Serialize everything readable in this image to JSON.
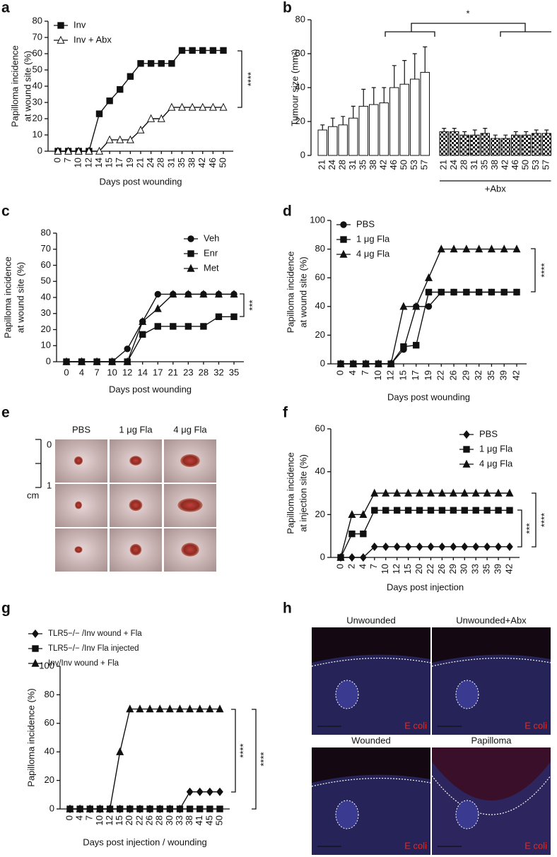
{
  "chart_data": [
    {
      "type": "line",
      "panel": "a",
      "ylabel": [
        "Papilloma incidence",
        "at wound site (%)"
      ],
      "xlabel": "Days post wounding",
      "categories": [
        "0",
        "7",
        "10",
        "12",
        "14",
        "15",
        "17",
        "19",
        "21",
        "24",
        "28",
        "31",
        "35",
        "38",
        "42",
        "46",
        "50"
      ],
      "series": [
        {
          "name": "Inv",
          "color": "#111111",
          "marker": "square",
          "values": [
            0,
            0,
            0,
            0,
            23,
            31,
            38,
            46,
            54,
            54,
            54,
            54,
            62,
            62,
            62,
            62,
            62
          ]
        },
        {
          "name": "Inv + Abx",
          "color": "#111111",
          "marker": "triangle-open",
          "values": [
            0,
            0,
            0,
            0,
            0,
            7,
            7,
            7,
            13,
            20,
            20,
            27,
            27,
            27,
            27,
            27,
            27
          ]
        }
      ],
      "ylim": [
        0,
        80
      ],
      "yticks": [
        0,
        10,
        20,
        30,
        40,
        50,
        60,
        70,
        80
      ],
      "legend": "upper left",
      "annotations": [
        "****"
      ]
    },
    {
      "type": "grouped-bar",
      "panel": "b",
      "ylabel": [
        "Tumour size (mm²)"
      ],
      "groups": [
        {
          "categories": [
            "21",
            "24",
            "28",
            "31",
            "35",
            "38",
            "42",
            "46",
            "50",
            "53",
            "57"
          ],
          "color": "#ffffff",
          "values": [
            15,
            17,
            18,
            22,
            29,
            30,
            31,
            40,
            42,
            45,
            49
          ],
          "errors": [
            3,
            5,
            5,
            7,
            10,
            10,
            9,
            13,
            14,
            15,
            15
          ]
        },
        {
          "label": "+Abx",
          "categories": [
            "21",
            "24",
            "28",
            "31",
            "35",
            "38",
            "42",
            "46",
            "50",
            "53",
            "57"
          ],
          "color": "checker",
          "values": [
            14,
            14,
            12,
            12,
            13,
            10,
            10,
            12,
            12,
            13,
            13
          ],
          "errors": [
            2,
            2,
            2,
            3,
            3,
            2,
            2,
            2,
            2,
            2,
            2
          ]
        }
      ],
      "ylim": [
        0,
        80
      ],
      "yticks": [
        0,
        20,
        40,
        60,
        80
      ],
      "annotations": [
        "*"
      ]
    },
    {
      "type": "line",
      "panel": "c",
      "ylabel": [
        "Papilloma incidence",
        "at wound site (%)"
      ],
      "xlabel": "Days post wounding",
      "categories": [
        "0",
        "4",
        "7",
        "10",
        "12",
        "14",
        "17",
        "21",
        "23",
        "28",
        "32",
        "35"
      ],
      "series": [
        {
          "name": "Veh",
          "color": "#111111",
          "marker": "circle",
          "values": [
            0,
            0,
            0,
            0,
            8,
            25,
            42,
            42,
            42,
            42,
            42,
            42
          ]
        },
        {
          "name": "Enr",
          "color": "#111111",
          "marker": "square",
          "values": [
            0,
            0,
            0,
            0,
            0,
            17,
            22,
            22,
            22,
            22,
            28,
            28
          ]
        },
        {
          "name": "Met",
          "color": "#111111",
          "marker": "triangle",
          "values": [
            0,
            0,
            0,
            0,
            0,
            25,
            33,
            42,
            42,
            42,
            42,
            42
          ]
        }
      ],
      "ylim": [
        0,
        80
      ],
      "yticks": [
        0,
        10,
        20,
        30,
        40,
        50,
        60,
        70,
        80
      ],
      "legend": "upper right",
      "annotations": [
        "***"
      ]
    },
    {
      "type": "line",
      "panel": "d",
      "ylabel": [
        "Papilloma incidence",
        "at wound site (%)"
      ],
      "xlabel": "Days post wounding",
      "categories": [
        "0",
        "4",
        "7",
        "10",
        "12",
        "15",
        "17",
        "19",
        "22",
        "26",
        "29",
        "32",
        "35",
        "39",
        "42"
      ],
      "series": [
        {
          "name": "PBS",
          "color": "#111111",
          "marker": "circle",
          "values": [
            0,
            0,
            0,
            0,
            0,
            10,
            40,
            40,
            50,
            50,
            50,
            50,
            50,
            50,
            50
          ]
        },
        {
          "name": "1 μg Fla",
          "color": "#111111",
          "marker": "square",
          "values": [
            0,
            0,
            0,
            0,
            0,
            12,
            13,
            50,
            50,
            50,
            50,
            50,
            50,
            50,
            50
          ]
        },
        {
          "name": "4 μg Fla",
          "color": "#111111",
          "marker": "triangle",
          "values": [
            0,
            0,
            0,
            0,
            0,
            40,
            40,
            60,
            80,
            80,
            80,
            80,
            80,
            80,
            80
          ]
        }
      ],
      "ylim": [
        0,
        100
      ],
      "yticks": [
        0,
        20,
        40,
        60,
        80,
        100
      ],
      "legend": "upper left",
      "annotations": [
        "****"
      ]
    },
    {
      "type": "line",
      "panel": "f",
      "ylabel": [
        "Papilloma incidence",
        "at injection site (%)"
      ],
      "xlabel": "Days post injection",
      "categories": [
        "0",
        "2",
        "4",
        "7",
        "10",
        "12",
        "15",
        "20",
        "22",
        "26",
        "29",
        "30",
        "33",
        "35",
        "39",
        "42"
      ],
      "series": [
        {
          "name": "PBS",
          "color": "#111111",
          "marker": "diamond",
          "values": [
            0,
            0,
            0,
            5,
            5,
            5,
            5,
            5,
            5,
            5,
            5,
            5,
            5,
            5,
            5,
            5
          ]
        },
        {
          "name": "1 μg Fla",
          "color": "#111111",
          "marker": "square",
          "values": [
            0,
            11,
            11,
            22,
            22,
            22,
            22,
            22,
            22,
            22,
            22,
            22,
            22,
            22,
            22,
            22
          ]
        },
        {
          "name": "4 μg Fla",
          "color": "#111111",
          "marker": "triangle",
          "values": [
            0,
            20,
            20,
            30,
            30,
            30,
            30,
            30,
            30,
            30,
            30,
            30,
            30,
            30,
            30,
            30
          ]
        }
      ],
      "ylim": [
        0,
        60
      ],
      "yticks": [
        0,
        20,
        40,
        60
      ],
      "legend": "upper right",
      "annotations": [
        "***",
        "****"
      ]
    },
    {
      "type": "line",
      "panel": "g",
      "ylabel": [
        "Papilloma incidence (%)"
      ],
      "xlabel": "Days post injection / wounding",
      "categories": [
        "0",
        "4",
        "7",
        "10",
        "12",
        "15",
        "20",
        "22",
        "26",
        "28",
        "30",
        "33",
        "38",
        "41",
        "45",
        "50"
      ],
      "series": [
        {
          "name": "TLR5−/− /Inv wound + Fla",
          "color": "#111111",
          "marker": "diamond",
          "values": [
            0,
            0,
            0,
            0,
            0,
            0,
            0,
            0,
            0,
            0,
            0,
            0,
            12,
            12,
            12,
            12
          ]
        },
        {
          "name": "TLR5−/− /Inv Fla injected",
          "color": "#111111",
          "marker": "square",
          "values": [
            0,
            0,
            0,
            0,
            0,
            0,
            0,
            0,
            0,
            0,
            0,
            0,
            0,
            0,
            0,
            0
          ]
        },
        {
          "name": "Inv/Inv wound + Fla",
          "color": "#111111",
          "marker": "triangle",
          "values": [
            0,
            0,
            0,
            0,
            0,
            40,
            70,
            70,
            70,
            70,
            70,
            70,
            70,
            70,
            70,
            70
          ]
        }
      ],
      "ylim": [
        0,
        100
      ],
      "yticks": [
        0,
        20,
        40,
        60,
        80,
        100
      ],
      "legend": "top",
      "annotations": [
        "****",
        "****"
      ]
    }
  ],
  "image_panels": {
    "e": {
      "panel": "e",
      "columns": [
        "PBS",
        "1 μg Fla",
        "4 μg Fla"
      ],
      "scale": [
        "0",
        "1"
      ],
      "unit": "cm"
    },
    "h": {
      "panel": "h",
      "images": [
        {
          "title": "Unwounded",
          "stain": "E coli"
        },
        {
          "title": "Unwounded+Abx",
          "stain": "E coli"
        },
        {
          "title": "Wounded",
          "stain": "E coli"
        },
        {
          "title": "Papilloma",
          "stain": "E coli"
        }
      ]
    }
  }
}
